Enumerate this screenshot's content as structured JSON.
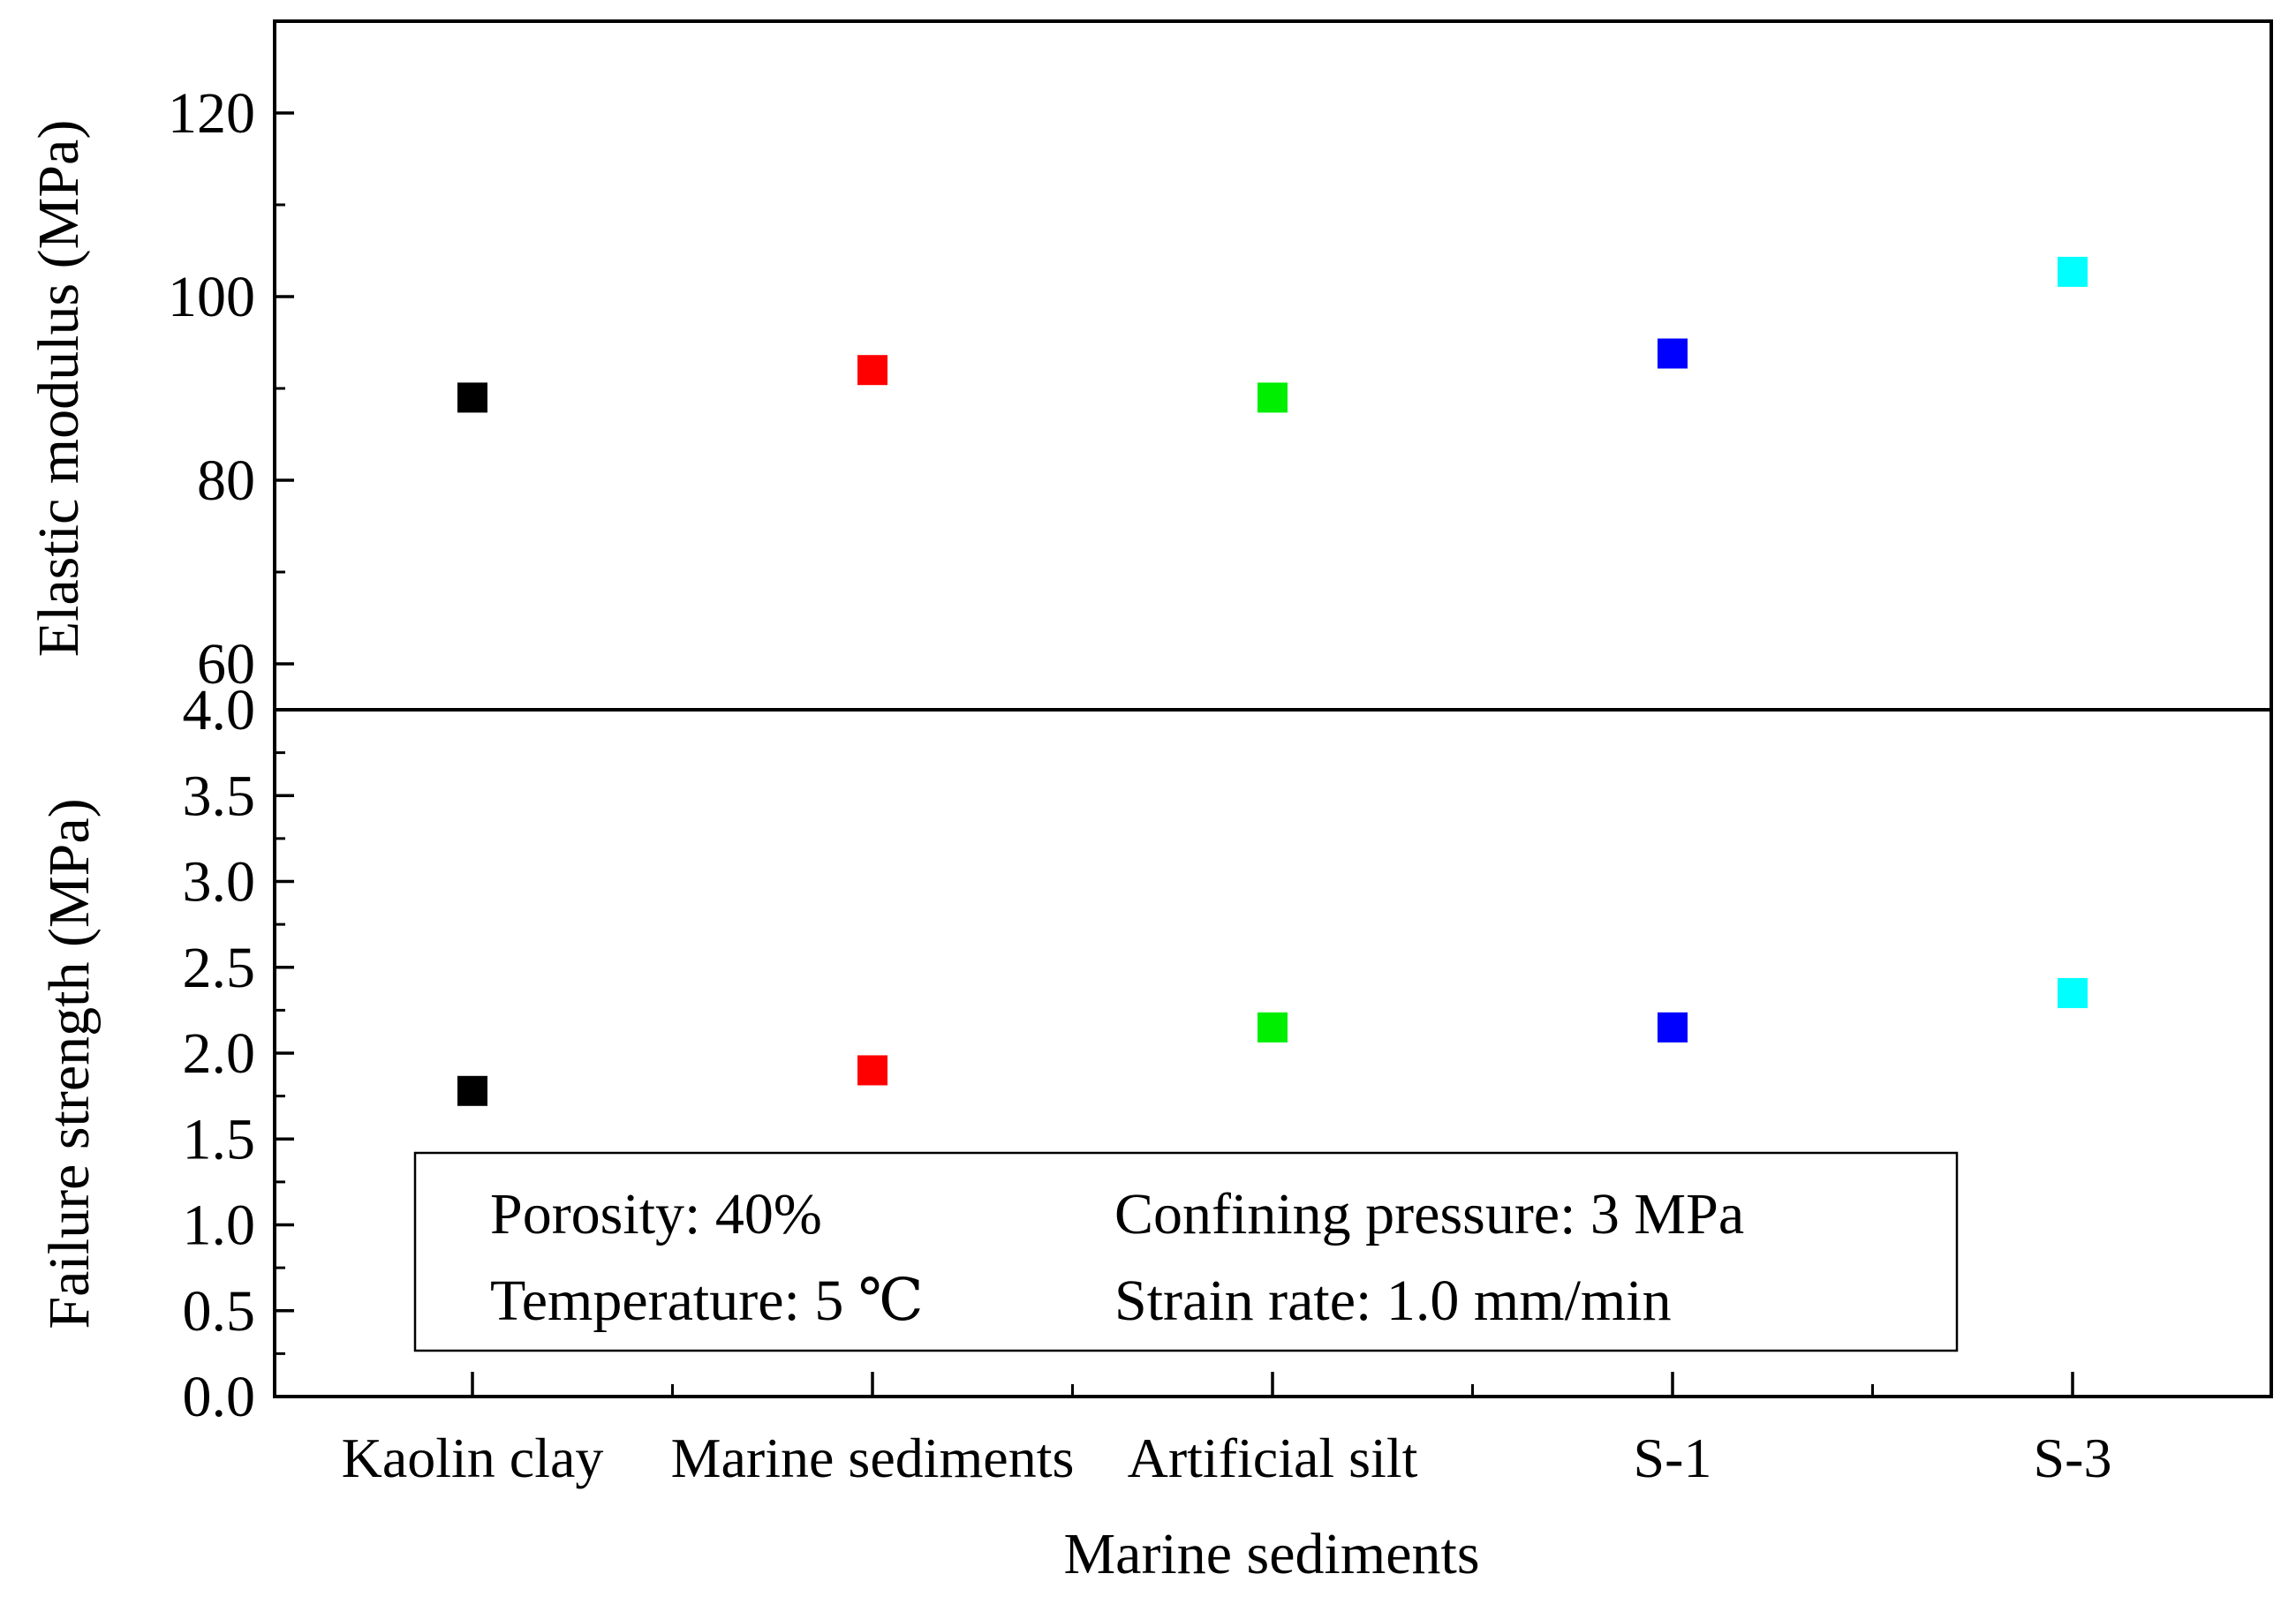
{
  "chart_data": [
    {
      "type": "scatter",
      "panel": "top",
      "ylabel": "Elastic modulus (MPa)",
      "ylim": [
        55,
        130
      ],
      "yticks": [
        60,
        80,
        100,
        120
      ],
      "ytick_labels": [
        "60",
        "80",
        "100",
        "120"
      ],
      "categories": [
        "Kaolin clay",
        "Marine sediments",
        "Artificial silt",
        "S-1",
        "S-3"
      ],
      "values": [
        89,
        92,
        89,
        93.8,
        102.7
      ],
      "colors": [
        "#000000",
        "#ff0000",
        "#00ee00",
        "#0000ff",
        "#00ffff"
      ]
    },
    {
      "type": "scatter",
      "panel": "bottom",
      "ylabel": "Failure strength (MPa)",
      "xlabel": "Marine sediments",
      "ylim": [
        0,
        4.0
      ],
      "yticks": [
        0,
        0.5,
        1.0,
        1.5,
        2.0,
        2.5,
        3.0,
        3.5,
        4.0
      ],
      "ytick_labels": [
        "0.0",
        "0.5",
        "1.0",
        "1.5",
        "2.0",
        "2.5",
        "3.0",
        "3.5",
        "4.0"
      ],
      "categories": [
        "Kaolin clay",
        "Marine sediments",
        "Artificial silt",
        "S-1",
        "S-3"
      ],
      "values": [
        1.78,
        1.9,
        2.15,
        2.15,
        2.35
      ],
      "colors": [
        "#000000",
        "#ff0000",
        "#00ee00",
        "#0000ff",
        "#00ffff"
      ]
    }
  ],
  "annotation": {
    "porosity": "Porosity: 40%",
    "confining_pressure": "Confining pressure: 3 MPa",
    "temperature": "Temperature: 5 ℃",
    "strain_rate": "Strain rate: 1.0 mm/min"
  }
}
